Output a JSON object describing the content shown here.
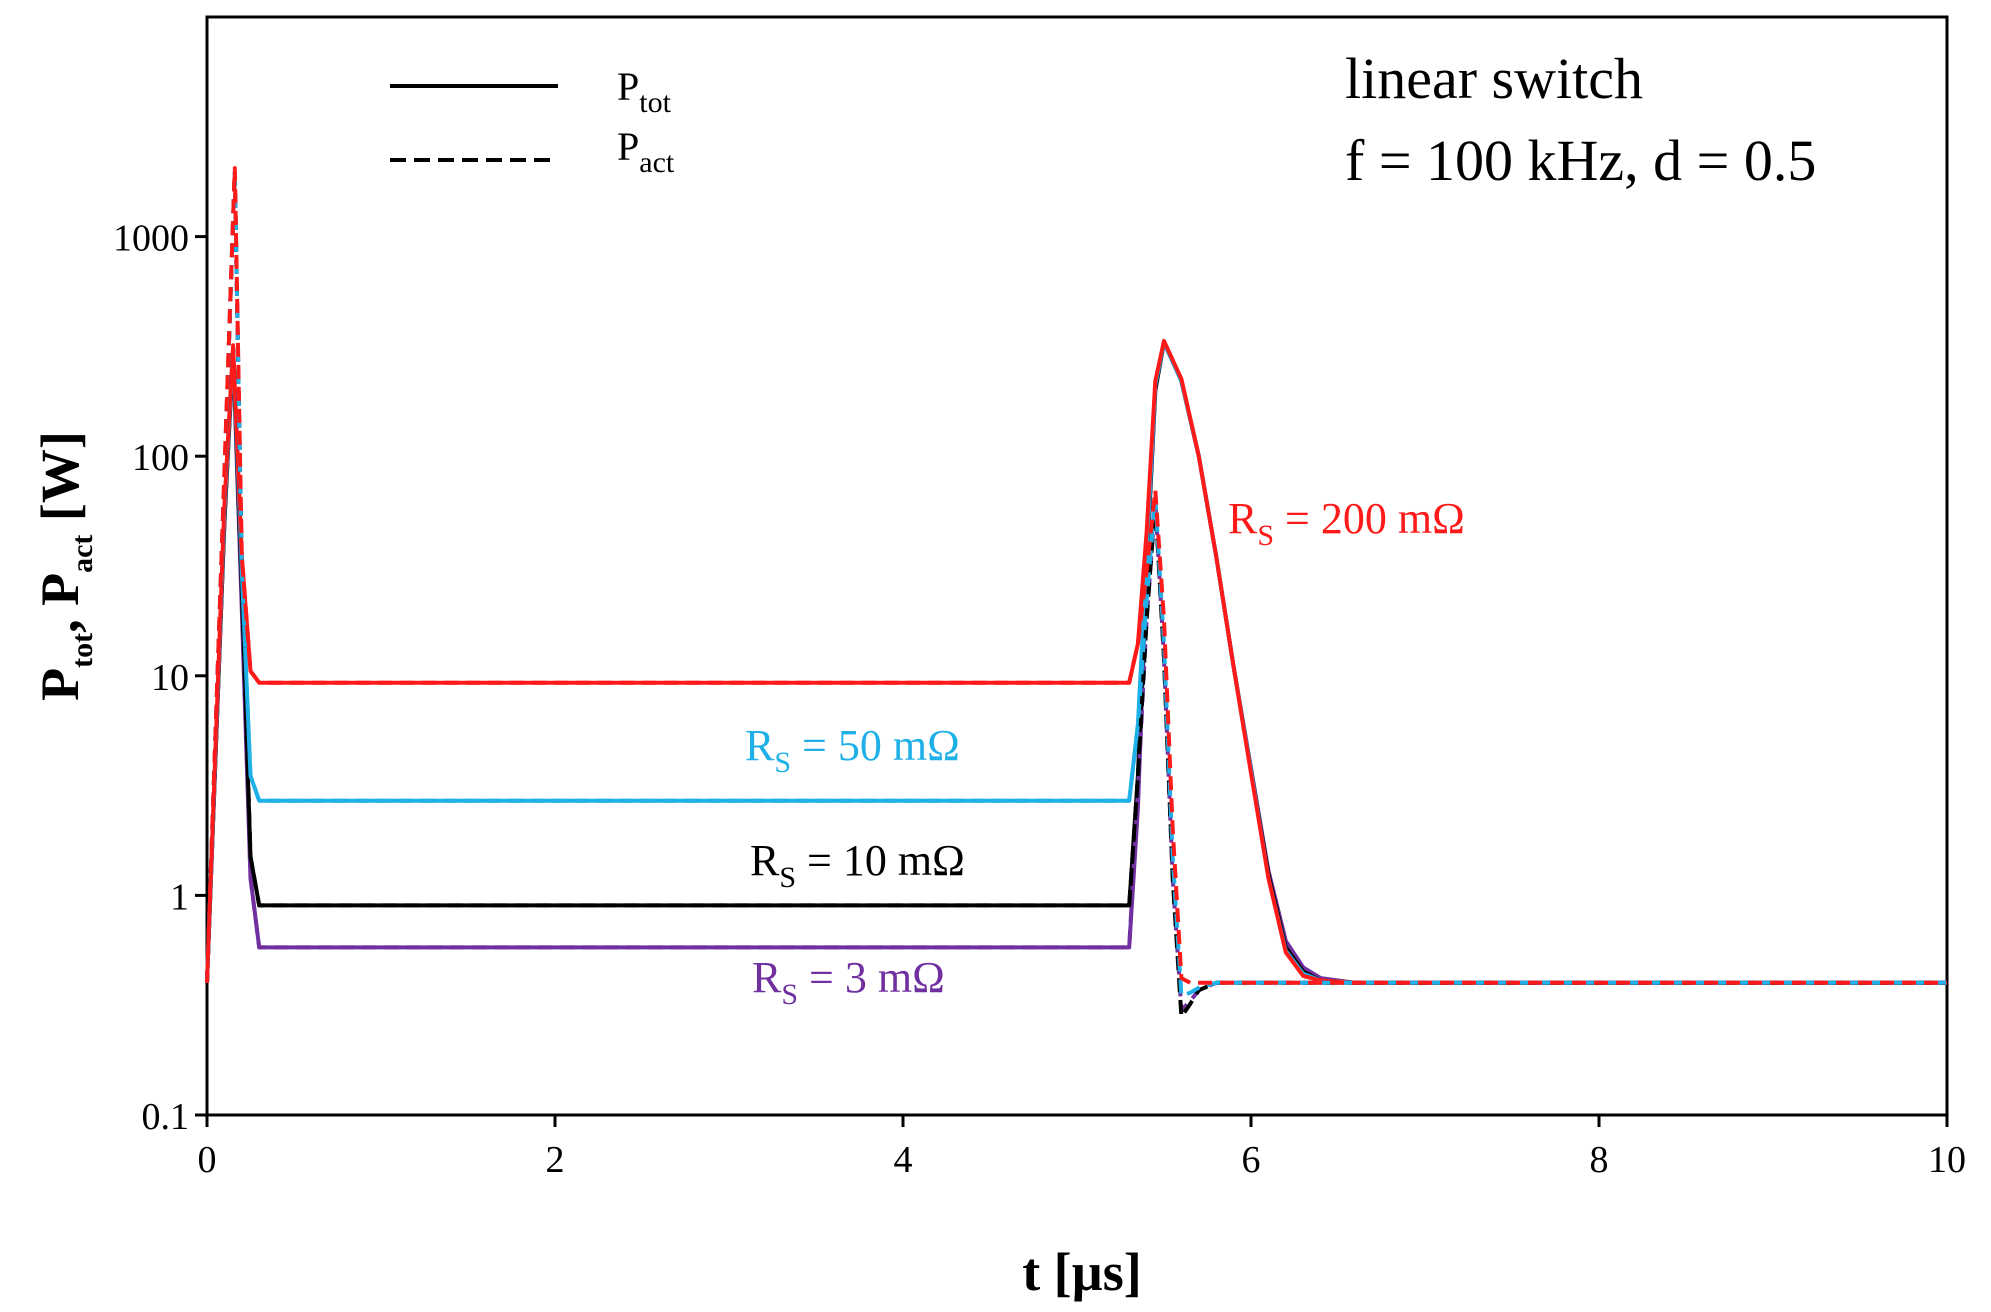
{
  "chart_data": {
    "type": "line",
    "title": "",
    "xlabel": "t [µs]",
    "ylabel": {
      "main": "P",
      "sub1": "tot",
      "mid": ", P",
      "sub2": "act",
      "tail": " [W]"
    },
    "x_scale": "linear",
    "y_scale": "log",
    "xlim": [
      0,
      10
    ],
    "ylim": [
      0.1,
      10000
    ],
    "x_ticks": [
      0,
      2,
      4,
      6,
      8,
      10
    ],
    "x_tick_labels": [
      "0",
      "2",
      "4",
      "6",
      "8",
      "10"
    ],
    "y_ticks": [
      0.1,
      1,
      10,
      100,
      1000
    ],
    "y_tick_labels": [
      "0.1",
      "1",
      "10",
      "100",
      "1000"
    ],
    "legend": [
      {
        "base": "P",
        "sub": "tot",
        "style": "solid"
      },
      {
        "base": "P",
        "sub": "act",
        "style": "dashed"
      }
    ],
    "annotations": [
      "linear switch",
      "f = 100 kHz, d = 0.5"
    ],
    "series": [
      {
        "name": "Ptot R_S = 3 mΩ",
        "label": {
          "base": "R",
          "sub": "S",
          "rest": " = 3 mΩ"
        },
        "color": "#7030a0",
        "style": "solid",
        "x": [
          0,
          0.1,
          0.15,
          0.2,
          0.25,
          0.3,
          5.3,
          5.35,
          5.4,
          5.45,
          5.5,
          5.6,
          5.7,
          5.8,
          5.9,
          6.0,
          6.1,
          6.2,
          6.3,
          6.4,
          6.6,
          10
        ],
        "y": [
          0.4,
          50,
          300,
          20,
          1.2,
          0.58,
          0.58,
          2.5,
          30,
          200,
          330,
          220,
          100,
          35,
          11,
          3.8,
          1.3,
          0.62,
          0.47,
          0.42,
          0.4,
          0.4
        ]
      },
      {
        "name": "Ptot R_S = 10 mΩ",
        "label": {
          "base": "R",
          "sub": "S",
          "rest": " = 10 mΩ"
        },
        "color": "#000000",
        "style": "solid",
        "x": [
          0,
          0.1,
          0.15,
          0.2,
          0.25,
          0.3,
          5.3,
          5.35,
          5.4,
          5.45,
          5.5,
          5.6,
          5.7,
          5.8,
          5.9,
          6.0,
          6.1,
          6.2,
          6.3,
          6.4,
          6.6,
          10
        ],
        "y": [
          0.4,
          50,
          300,
          25,
          1.5,
          0.9,
          0.9,
          3.5,
          32,
          200,
          330,
          220,
          100,
          35,
          11,
          3.7,
          1.25,
          0.58,
          0.45,
          0.41,
          0.4,
          0.4
        ]
      },
      {
        "name": "Ptot R_S = 50 mΩ",
        "label": {
          "base": "R",
          "sub": "S",
          "rest": " = 50 mΩ"
        },
        "color": "#1fb0e8",
        "style": "solid",
        "x": [
          0,
          0.1,
          0.15,
          0.2,
          0.25,
          0.3,
          5.3,
          5.35,
          5.4,
          5.45,
          5.5,
          5.6,
          5.7,
          5.8,
          5.9,
          6.0,
          6.1,
          6.2,
          6.3,
          6.4,
          6.6,
          10
        ],
        "y": [
          0.4,
          55,
          310,
          30,
          3.5,
          2.7,
          2.7,
          6,
          35,
          210,
          330,
          220,
          100,
          35,
          11,
          3.7,
          1.2,
          0.56,
          0.44,
          0.41,
          0.4,
          0.4
        ]
      },
      {
        "name": "Ptot R_S = 200 mΩ",
        "label": {
          "base": "R",
          "sub": "S",
          "rest": " = 200 mΩ"
        },
        "color": "#ff1a1a",
        "style": "solid",
        "x": [
          0,
          0.1,
          0.15,
          0.2,
          0.25,
          0.3,
          5.3,
          5.35,
          5.4,
          5.45,
          5.5,
          5.6,
          5.7,
          5.8,
          5.9,
          6.0,
          6.1,
          6.2,
          6.3,
          6.4,
          6.6,
          10
        ],
        "y": [
          0.4,
          60,
          320,
          35,
          10.5,
          9.3,
          9.3,
          14,
          45,
          220,
          335,
          225,
          100,
          35,
          11,
          3.6,
          1.2,
          0.55,
          0.43,
          0.41,
          0.4,
          0.4
        ]
      },
      {
        "name": "Pact R_S = 3 mΩ",
        "color": "#7030a0",
        "style": "dashed",
        "x": [
          0,
          0.1,
          0.16,
          0.2,
          0.25,
          0.3,
          5.3,
          5.35,
          5.4,
          5.45,
          5.5,
          5.55,
          5.6,
          5.65,
          5.7,
          5.8,
          6.0,
          10
        ],
        "y": [
          0.4,
          80,
          2000,
          30,
          1.2,
          0.58,
          0.58,
          3,
          18,
          62,
          12,
          1.2,
          0.3,
          0.33,
          0.37,
          0.4,
          0.4,
          0.4
        ]
      },
      {
        "name": "Pact R_S = 10 mΩ",
        "color": "#000000",
        "style": "dashed",
        "x": [
          0,
          0.1,
          0.16,
          0.2,
          0.25,
          0.3,
          5.3,
          5.35,
          5.4,
          5.45,
          5.5,
          5.55,
          5.6,
          5.65,
          5.7,
          5.8,
          6.0,
          10
        ],
        "y": [
          0.4,
          80,
          2000,
          30,
          1.5,
          0.9,
          0.9,
          3.5,
          18,
          62,
          12,
          1.2,
          0.28,
          0.32,
          0.37,
          0.4,
          0.4,
          0.4
        ]
      },
      {
        "name": "Pact R_S = 50 mΩ",
        "color": "#1fb0e8",
        "style": "dashed",
        "x": [
          0,
          0.1,
          0.16,
          0.2,
          0.25,
          0.3,
          5.3,
          5.35,
          5.4,
          5.45,
          5.5,
          5.55,
          5.6,
          5.65,
          5.7,
          5.8,
          6.0,
          10
        ],
        "y": [
          0.4,
          80,
          2000,
          30,
          3.5,
          2.7,
          2.7,
          6,
          22,
          65,
          14,
          1.5,
          0.35,
          0.36,
          0.38,
          0.4,
          0.4,
          0.4
        ]
      },
      {
        "name": "Pact R_S = 200 mΩ",
        "color": "#ff1a1a",
        "style": "dashed",
        "x": [
          0,
          0.1,
          0.16,
          0.2,
          0.25,
          0.3,
          5.3,
          5.35,
          5.4,
          5.45,
          5.5,
          5.55,
          5.6,
          5.65,
          5.7,
          5.8,
          6.0,
          10
        ],
        "y": [
          0.4,
          85,
          2050,
          35,
          10.5,
          9.3,
          9.3,
          14,
          30,
          70,
          18,
          2,
          0.42,
          0.4,
          0.4,
          0.4,
          0.4,
          0.4
        ]
      }
    ]
  }
}
